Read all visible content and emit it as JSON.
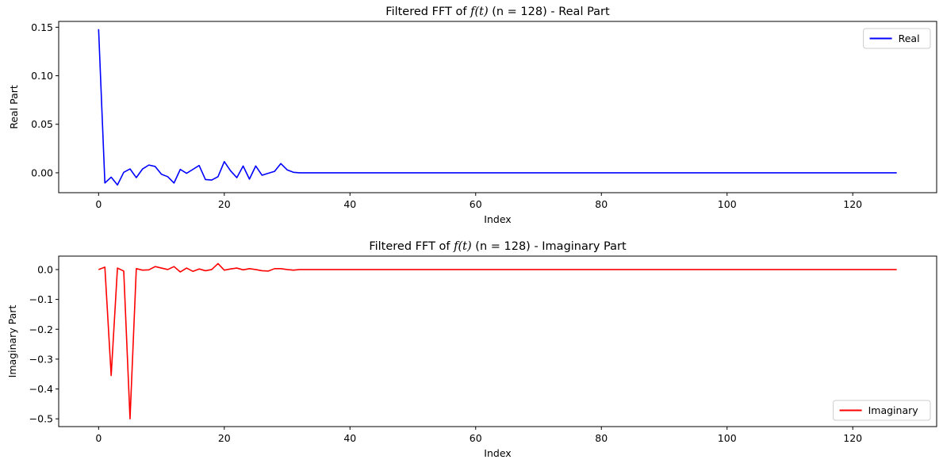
{
  "chart_data": [
    {
      "type": "line",
      "title_prefix": "Filtered FFT of ",
      "title_math": "f(t)",
      "title_suffix": " (n = 128) - Real Part",
      "xlabel": "Index",
      "ylabel": "Real Part",
      "xlim": [
        -6.35,
        133.35
      ],
      "ylim": [
        -0.0205,
        0.156
      ],
      "xticks": [
        0,
        20,
        40,
        60,
        80,
        100,
        120
      ],
      "xtick_labels": [
        "0",
        "20",
        "40",
        "60",
        "80",
        "100",
        "120"
      ],
      "yticks": [
        0.0,
        0.05,
        0.1,
        0.15
      ],
      "ytick_labels": [
        "0.00",
        "0.05",
        "0.10",
        "0.15"
      ],
      "legend": "upper right",
      "grid": false,
      "series": [
        {
          "name": "Real",
          "color": "#0000ff",
          "x_start": 0,
          "x_end": 127,
          "values_nonzero": [
            0.148,
            -0.0105,
            -0.0045,
            -0.0125,
            0.0005,
            0.004,
            -0.005,
            0.004,
            0.008,
            0.0065,
            -0.0015,
            -0.004,
            -0.0105,
            0.0035,
            -0.0005,
            0.0035,
            0.0075,
            -0.007,
            -0.0075,
            -0.004,
            0.0115,
            0.002,
            -0.005,
            0.007,
            -0.0065,
            0.007,
            -0.0025,
            -0.0005,
            0.0015,
            0.0095,
            0.003,
            0.0005,
            0.0
          ],
          "values_rest": 0.0
        }
      ]
    },
    {
      "type": "line",
      "title_prefix": "Filtered FFT of ",
      "title_math": "f(t)",
      "title_suffix": " (n = 128) - Imaginary Part",
      "xlabel": "Index",
      "ylabel": "Imaginary Part",
      "xlim": [
        -6.35,
        133.35
      ],
      "ylim": [
        -0.526,
        0.045
      ],
      "xticks": [
        0,
        20,
        40,
        60,
        80,
        100,
        120
      ],
      "xtick_labels": [
        "0",
        "20",
        "40",
        "60",
        "80",
        "100",
        "120"
      ],
      "yticks": [
        -0.5,
        -0.4,
        -0.3,
        -0.2,
        -0.1,
        0.0
      ],
      "ytick_labels": [
        "−0.5",
        "−0.4",
        "−0.3",
        "−0.2",
        "−0.1",
        "0.0"
      ],
      "legend": "lower right",
      "grid": false,
      "series": [
        {
          "name": "Imaginary",
          "color": "#ff0000",
          "x_start": 0,
          "x_end": 127,
          "values_nonzero": [
            0.0,
            0.008,
            -0.355,
            0.005,
            -0.005,
            -0.5,
            0.003,
            -0.002,
            -0.001,
            0.01,
            0.005,
            0.0,
            0.01,
            -0.008,
            0.005,
            -0.006,
            0.002,
            -0.004,
            0.0,
            0.02,
            -0.002,
            0.002,
            0.005,
            -0.001,
            0.003,
            0.0,
            -0.004,
            -0.005,
            0.003,
            0.003,
            0.0,
            -0.002,
            0.0
          ],
          "values_rest": 0.0
        }
      ]
    }
  ]
}
